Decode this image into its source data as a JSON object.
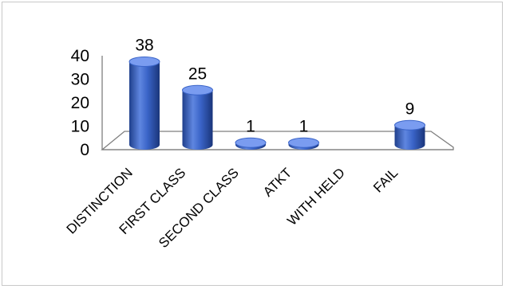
{
  "chart_data": {
    "type": "bar",
    "style": "3d-cylinder",
    "categories": [
      "DISTINCTION",
      "FIRST CLASS",
      "SECOND CLASS",
      "ATKT",
      "WITH HELD",
      "FAIL"
    ],
    "values": [
      38,
      25,
      1,
      1,
      0,
      9
    ],
    "data_labels": [
      "38",
      "25",
      "1",
      "1",
      "",
      "9"
    ],
    "y_ticks": [
      "0",
      "10",
      "20",
      "30",
      "40"
    ],
    "ylim": [
      0,
      40
    ],
    "title": "",
    "xlabel": "",
    "ylabel": "",
    "grid": false,
    "legend": "none",
    "colors": {
      "bar": "#3a64c8",
      "bar_dark": "#1f3f8c",
      "bar_light": "#7a9cf0",
      "floor": "#7f7f7f"
    }
  }
}
